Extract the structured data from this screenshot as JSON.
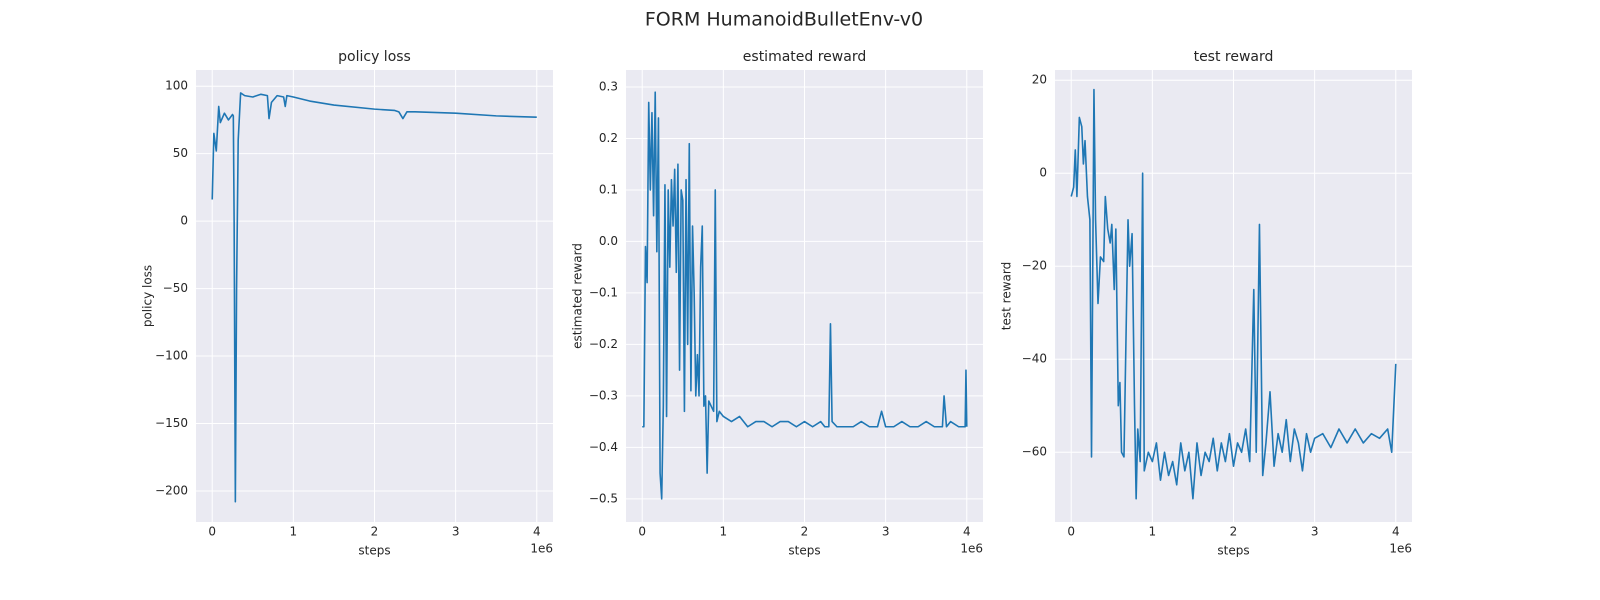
{
  "title": "FORM HumanoidBulletEnv-v0",
  "chart_data": [
    {
      "type": "line",
      "title": "policy loss",
      "xlabel": "steps",
      "ylabel": "policy loss",
      "x_offset_label": "1e6",
      "color": "#1f77b4",
      "grid": true,
      "xlim": [
        -0.2,
        4.2
      ],
      "xticks": [
        0,
        1,
        2,
        3,
        4
      ],
      "ylim": [
        -223,
        112
      ],
      "yticks": [
        {
          "value": -200,
          "label": "−200"
        },
        {
          "value": -150,
          "label": "−150"
        },
        {
          "value": -100,
          "label": "−100"
        },
        {
          "value": -50,
          "label": "−50"
        },
        0,
        50,
        100
      ],
      "x": [
        0,
        0.02,
        0.05,
        0.08,
        0.1,
        0.15,
        0.2,
        0.25,
        0.26,
        0.27,
        0.285,
        0.3,
        0.32,
        0.35,
        0.4,
        0.5,
        0.6,
        0.68,
        0.7,
        0.73,
        0.8,
        0.88,
        0.9,
        0.92,
        1.0,
        1.2,
        1.5,
        2.0,
        2.25,
        2.3,
        2.35,
        2.4,
        2.5,
        3.0,
        3.5,
        4.0
      ],
      "values": [
        16,
        65,
        52,
        85,
        73,
        80,
        75,
        79,
        78,
        0,
        -208,
        -50,
        60,
        95,
        93,
        92,
        94,
        93,
        76,
        88,
        93,
        92,
        85,
        93,
        92,
        89,
        86,
        83,
        82,
        81,
        76,
        81,
        81,
        80,
        78,
        77
      ]
    },
    {
      "type": "line",
      "title": "estimated reward",
      "xlabel": "steps",
      "ylabel": "estimated reward",
      "x_offset_label": "1e6",
      "color": "#1f77b4",
      "grid": true,
      "xlim": [
        -0.2,
        4.2
      ],
      "xticks": [
        0,
        1,
        2,
        3,
        4
      ],
      "ylim": [
        -0.545,
        0.333
      ],
      "yticks": [
        {
          "value": -0.5,
          "label": "−0.5"
        },
        {
          "value": -0.4,
          "label": "−0.4"
        },
        {
          "value": -0.3,
          "label": "−0.3"
        },
        {
          "value": -0.2,
          "label": "−0.2"
        },
        {
          "value": -0.1,
          "label": "−0.1"
        },
        {
          "value": 0,
          "label": "0.0"
        },
        0.1,
        0.2,
        0.3
      ],
      "x": [
        0,
        0.02,
        0.04,
        0.06,
        0.08,
        0.1,
        0.12,
        0.14,
        0.16,
        0.18,
        0.2,
        0.22,
        0.24,
        0.26,
        0.28,
        0.3,
        0.32,
        0.34,
        0.36,
        0.38,
        0.4,
        0.42,
        0.44,
        0.46,
        0.48,
        0.5,
        0.52,
        0.54,
        0.56,
        0.58,
        0.6,
        0.62,
        0.64,
        0.66,
        0.68,
        0.7,
        0.72,
        0.74,
        0.76,
        0.78,
        0.8,
        0.82,
        0.85,
        0.88,
        0.9,
        0.92,
        0.95,
        1.0,
        1.1,
        1.2,
        1.3,
        1.4,
        1.5,
        1.6,
        1.7,
        1.8,
        1.9,
        2.0,
        2.1,
        2.2,
        2.25,
        2.3,
        2.32,
        2.34,
        2.4,
        2.5,
        2.6,
        2.7,
        2.8,
        2.9,
        2.95,
        3.0,
        3.1,
        3.2,
        3.3,
        3.4,
        3.5,
        3.6,
        3.7,
        3.72,
        3.75,
        3.8,
        3.9,
        3.95,
        3.98,
        3.99,
        4.0
      ],
      "values": [
        -0.36,
        -0.36,
        -0.01,
        -0.08,
        0.27,
        0.1,
        0.25,
        0.05,
        0.29,
        -0.02,
        0.24,
        -0.45,
        -0.5,
        -0.32,
        0.11,
        -0.34,
        0.1,
        -0.05,
        0.12,
        0.03,
        0.14,
        -0.06,
        0.15,
        -0.25,
        0.1,
        0.08,
        -0.33,
        0.12,
        -0.2,
        0.19,
        -0.29,
        0.03,
        -0.1,
        -0.3,
        -0.22,
        -0.3,
        -0.05,
        0.03,
        -0.32,
        -0.3,
        -0.45,
        -0.31,
        -0.32,
        -0.33,
        0.1,
        -0.35,
        -0.33,
        -0.34,
        -0.35,
        -0.34,
        -0.36,
        -0.35,
        -0.35,
        -0.36,
        -0.35,
        -0.35,
        -0.36,
        -0.35,
        -0.36,
        -0.35,
        -0.36,
        -0.36,
        -0.16,
        -0.35,
        -0.36,
        -0.36,
        -0.36,
        -0.35,
        -0.36,
        -0.36,
        -0.33,
        -0.36,
        -0.36,
        -0.35,
        -0.36,
        -0.36,
        -0.35,
        -0.36,
        -0.36,
        -0.3,
        -0.36,
        -0.35,
        -0.36,
        -0.36,
        -0.36,
        -0.25,
        -0.36
      ]
    },
    {
      "type": "line",
      "title": "test reward",
      "xlabel": "steps",
      "ylabel": "test reward",
      "x_offset_label": "1e6",
      "color": "#1f77b4",
      "grid": true,
      "xlim": [
        -0.2,
        4.2
      ],
      "xticks": [
        0,
        1,
        2,
        3,
        4
      ],
      "ylim": [
        -75,
        22.2
      ],
      "yticks": [
        {
          "value": -60,
          "label": "−60"
        },
        {
          "value": -40,
          "label": "−40"
        },
        {
          "value": -20,
          "label": "−20"
        },
        0,
        20
      ],
      "x": [
        0,
        0.03,
        0.05,
        0.07,
        0.1,
        0.13,
        0.15,
        0.17,
        0.2,
        0.23,
        0.25,
        0.28,
        0.3,
        0.33,
        0.36,
        0.4,
        0.42,
        0.45,
        0.48,
        0.5,
        0.53,
        0.55,
        0.58,
        0.6,
        0.62,
        0.65,
        0.7,
        0.72,
        0.75,
        0.78,
        0.8,
        0.82,
        0.85,
        0.88,
        0.9,
        0.95,
        1.0,
        1.05,
        1.1,
        1.15,
        1.2,
        1.25,
        1.3,
        1.35,
        1.4,
        1.45,
        1.5,
        1.55,
        1.6,
        1.65,
        1.7,
        1.75,
        1.8,
        1.85,
        1.9,
        1.95,
        2.0,
        2.05,
        2.1,
        2.15,
        2.2,
        2.25,
        2.28,
        2.32,
        2.36,
        2.4,
        2.45,
        2.5,
        2.55,
        2.6,
        2.65,
        2.7,
        2.75,
        2.8,
        2.85,
        2.9,
        2.95,
        3.0,
        3.1,
        3.2,
        3.3,
        3.4,
        3.5,
        3.6,
        3.7,
        3.8,
        3.9,
        3.95,
        4.0
      ],
      "values": [
        -5,
        -3,
        5,
        -5,
        12,
        10,
        2,
        7,
        -5,
        -10,
        -61,
        18,
        -10,
        -28,
        -18,
        -19,
        -5,
        -12,
        -15,
        -11,
        -25,
        -12,
        -50,
        -45,
        -60,
        -61,
        -10,
        -20,
        -13,
        -50,
        -70,
        -55,
        -62,
        0,
        -64,
        -60,
        -62,
        -58,
        -66,
        -60,
        -65,
        -62,
        -67,
        -58,
        -64,
        -60,
        -70,
        -58,
        -65,
        -60,
        -62,
        -57,
        -64,
        -58,
        -62,
        -56,
        -63,
        -58,
        -60,
        -55,
        -62,
        -25,
        -60,
        -11,
        -65,
        -58,
        -47,
        -63,
        -56,
        -60,
        -53,
        -62,
        -55,
        -58,
        -64,
        -56,
        -60,
        -57,
        -56,
        -59,
        -55,
        -58,
        -55,
        -58,
        -56,
        -57,
        -55,
        -60,
        -41
      ]
    }
  ]
}
